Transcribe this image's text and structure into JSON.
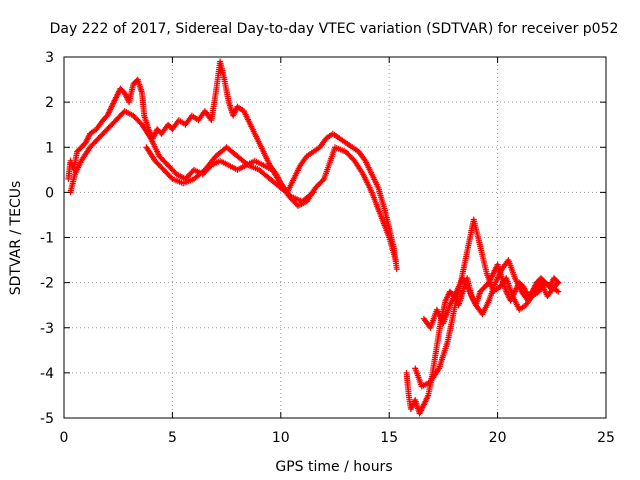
{
  "chart_data": {
    "type": "scatter",
    "title": "Day 222 of 2017, Sidereal Day-to-day VTEC variation (SDTVAR) for receiver p052",
    "xlabel": "GPS time / hours",
    "ylabel": "SDTVAR / TECUs",
    "xlim": [
      0,
      25
    ],
    "ylim": [
      -5,
      3
    ],
    "xticks": [
      0,
      5,
      10,
      15,
      20,
      25
    ],
    "yticks": [
      -5,
      -4,
      -3,
      -2,
      -1,
      0,
      1,
      2,
      3
    ],
    "grid": true,
    "marker": "+",
    "series": [
      {
        "name": "SDTVAR",
        "color": "#ff0000",
        "tracks": [
          {
            "x": [
              0.2,
              0.3,
              0.45,
              0.6,
              0.8,
              1.0,
              1.2,
              1.5,
              1.8,
              2.0,
              2.2,
              2.4,
              2.6,
              2.8,
              3.0,
              3.2,
              3.4,
              3.6,
              3.7,
              3.9,
              4.1,
              4.3,
              4.5,
              4.8,
              5.0,
              5.3,
              5.6,
              5.9,
              6.2,
              6.5,
              6.8,
              7.0,
              7.2,
              7.4,
              7.6,
              7.8,
              8.0,
              8.3,
              8.6,
              8.9,
              9.2,
              9.5,
              9.8,
              10.0,
              10.3,
              10.6,
              10.9,
              11.2,
              11.5,
              11.8,
              12.1,
              12.4,
              12.7,
              13.0,
              13.3,
              13.6,
              13.9,
              14.2,
              14.5,
              14.8,
              15.0,
              15.2,
              15.35
            ],
            "y": [
              0.3,
              0.7,
              0.5,
              0.9,
              1.0,
              1.1,
              1.3,
              1.4,
              1.6,
              1.7,
              1.9,
              2.1,
              2.3,
              2.2,
              2.0,
              2.4,
              2.5,
              2.2,
              1.7,
              1.4,
              1.2,
              1.4,
              1.3,
              1.5,
              1.4,
              1.6,
              1.5,
              1.7,
              1.6,
              1.8,
              1.6,
              2.2,
              2.9,
              2.5,
              2.0,
              1.7,
              1.9,
              1.8,
              1.5,
              1.2,
              0.9,
              0.6,
              0.4,
              0.2,
              0.0,
              0.3,
              0.6,
              0.8,
              0.9,
              1.0,
              1.2,
              1.3,
              1.2,
              1.1,
              1.0,
              0.9,
              0.7,
              0.4,
              0.1,
              -0.4,
              -0.8,
              -1.2,
              -1.7
            ]
          },
          {
            "x": [
              0.3,
              0.5,
              0.8,
              1.2,
              1.6,
              2.0,
              2.4,
              2.8,
              3.2,
              3.6,
              4.0,
              4.4,
              4.8,
              5.2,
              5.6,
              6.0,
              6.4,
              6.8,
              7.2,
              7.6,
              8.0,
              8.4,
              8.8,
              9.2,
              9.6,
              10.0,
              10.4,
              10.8,
              11.2,
              11.6,
              12.0,
              12.5,
              13.0,
              13.4,
              13.8,
              14.2,
              14.6,
              15.0,
              15.3
            ],
            "y": [
              0.0,
              0.4,
              0.7,
              1.0,
              1.2,
              1.4,
              1.6,
              1.8,
              1.7,
              1.5,
              1.2,
              0.8,
              0.6,
              0.4,
              0.3,
              0.5,
              0.4,
              0.6,
              0.7,
              0.6,
              0.5,
              0.6,
              0.7,
              0.6,
              0.5,
              0.2,
              -0.1,
              -0.3,
              -0.2,
              0.1,
              0.3,
              1.0,
              0.9,
              0.7,
              0.4,
              0.0,
              -0.5,
              -1.0,
              -1.5
            ]
          },
          {
            "x": [
              3.8,
              4.2,
              4.6,
              5.0,
              5.5,
              6.0,
              6.5,
              7.0,
              7.5,
              8.0,
              8.5,
              9.0,
              9.5,
              10.0,
              10.5,
              11.0,
              11.5
            ],
            "y": [
              1.0,
              0.7,
              0.5,
              0.3,
              0.2,
              0.3,
              0.5,
              0.8,
              1.0,
              0.8,
              0.6,
              0.5,
              0.3,
              0.1,
              -0.1,
              -0.2,
              0.0
            ]
          },
          {
            "x": [
              15.8,
              15.9,
              16.0,
              16.2,
              16.4,
              16.6,
              16.8,
              17.0,
              17.2,
              17.4,
              17.6,
              17.8,
              18.0,
              18.2,
              18.4,
              18.6,
              18.8,
              19.0,
              19.2,
              19.4,
              19.6,
              19.8,
              20.0,
              20.2,
              20.4,
              20.6,
              20.8,
              21.0,
              21.2,
              21.4,
              21.6,
              21.8,
              22.0,
              22.2,
              22.4,
              22.6,
              22.8
            ],
            "y": [
              -4.0,
              -4.5,
              -4.8,
              -4.6,
              -4.9,
              -4.7,
              -4.5,
              -4.0,
              -3.4,
              -2.8,
              -2.4,
              -2.2,
              -2.3,
              -2.5,
              -2.2,
              -1.9,
              -2.3,
              -2.5,
              -2.2,
              -2.1,
              -2.0,
              -1.8,
              -1.6,
              -1.9,
              -2.2,
              -2.4,
              -2.2,
              -2.0,
              -2.1,
              -2.3,
              -2.2,
              -2.0,
              -1.9,
              -2.0,
              -2.1,
              -1.9,
              -2.0
            ]
          },
          {
            "x": [
              16.2,
              16.5,
              16.9,
              17.3,
              17.7,
              18.0,
              18.3,
              18.6,
              18.9,
              19.2,
              19.5,
              19.8,
              20.1,
              20.4,
              20.7,
              21.0,
              21.3,
              21.6,
              21.9,
              22.2,
              22.5,
              22.8
            ],
            "y": [
              -3.9,
              -4.3,
              -4.2,
              -3.9,
              -3.3,
              -2.6,
              -2.0,
              -1.3,
              -0.6,
              -1.2,
              -1.8,
              -2.2,
              -2.1,
              -1.9,
              -2.3,
              -2.6,
              -2.5,
              -2.3,
              -2.2,
              -2.0,
              -2.1,
              -2.2
            ]
          },
          {
            "x": [
              16.6,
              16.9,
              17.2,
              17.5,
              17.8,
              18.1,
              18.4,
              18.7,
              19.0,
              19.3,
              19.6,
              19.9,
              20.2,
              20.5,
              20.8,
              21.1,
              21.4,
              21.7,
              22.0,
              22.3,
              22.6,
              22.8
            ],
            "y": [
              -2.8,
              -3.0,
              -2.6,
              -2.9,
              -2.5,
              -2.2,
              -1.9,
              -2.2,
              -2.5,
              -2.7,
              -2.4,
              -2.0,
              -1.7,
              -1.5,
              -1.9,
              -2.2,
              -2.4,
              -2.2,
              -2.0,
              -2.3,
              -2.1,
              -2.0
            ]
          }
        ]
      }
    ]
  }
}
